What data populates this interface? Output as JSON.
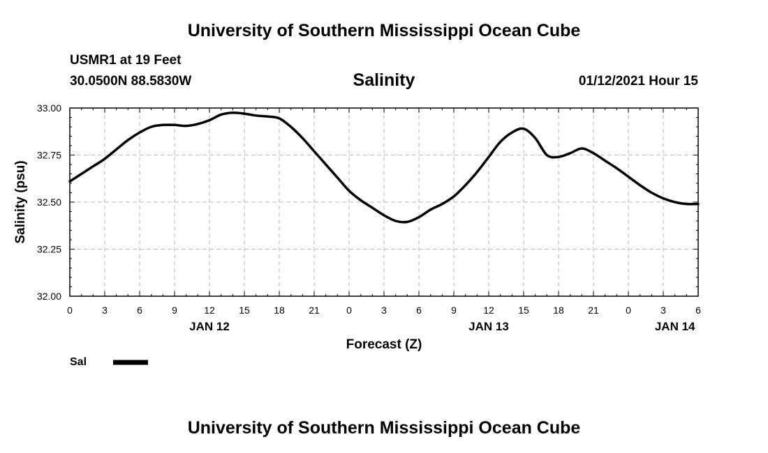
{
  "header": {
    "title": "University of Southern Mississippi Ocean Cube",
    "station": "USMR1 at 19 Feet",
    "coordinates": "30.0500N 88.5830W",
    "datetime": "01/12/2021 Hour 15"
  },
  "footer": {
    "title": "University of Southern Mississippi Ocean Cube"
  },
  "chart_data": {
    "type": "line",
    "title": "Salinity",
    "xlabel": "Forecast (Z)",
    "ylabel": "Salinity (psu)",
    "ylim": [
      32.0,
      33.0
    ],
    "xlim": [
      0,
      54
    ],
    "grid": true,
    "y_ticks": [
      "32.00",
      "32.25",
      "32.50",
      "32.75",
      "33.00"
    ],
    "x_ticks": [
      {
        "hour": 0,
        "label": "0"
      },
      {
        "hour": 3,
        "label": "3"
      },
      {
        "hour": 6,
        "label": "6"
      },
      {
        "hour": 9,
        "label": "9"
      },
      {
        "hour": 12,
        "label": "12"
      },
      {
        "hour": 15,
        "label": "15"
      },
      {
        "hour": 18,
        "label": "18"
      },
      {
        "hour": 21,
        "label": "21"
      },
      {
        "hour": 24,
        "label": "0"
      },
      {
        "hour": 27,
        "label": "3"
      },
      {
        "hour": 30,
        "label": "6"
      },
      {
        "hour": 33,
        "label": "9"
      },
      {
        "hour": 36,
        "label": "12"
      },
      {
        "hour": 39,
        "label": "15"
      },
      {
        "hour": 42,
        "label": "18"
      },
      {
        "hour": 45,
        "label": "21"
      },
      {
        "hour": 48,
        "label": "0"
      },
      {
        "hour": 51,
        "label": "3"
      },
      {
        "hour": 54,
        "label": "6"
      }
    ],
    "date_labels": [
      {
        "hour": 12,
        "label": "JAN 12"
      },
      {
        "hour": 36,
        "label": "JAN 13"
      },
      {
        "hour": 52,
        "label": "JAN 14"
      }
    ],
    "legend": [
      {
        "name": "Sal",
        "color": "#000000"
      }
    ],
    "legend_position": "bottom-left",
    "series": [
      {
        "name": "Sal",
        "color": "#000000",
        "x": [
          0,
          1,
          2,
          3,
          4,
          5,
          6,
          7,
          8,
          9,
          10,
          11,
          12,
          13,
          14,
          15,
          16,
          17,
          18,
          19,
          20,
          21,
          22,
          23,
          24,
          25,
          26,
          27,
          28,
          29,
          30,
          31,
          32,
          33,
          34,
          35,
          36,
          37,
          38,
          39,
          40,
          41,
          42,
          43,
          44,
          45,
          46,
          47,
          48,
          49,
          50,
          51,
          52,
          53,
          54
        ],
        "values": [
          32.61,
          32.65,
          32.69,
          32.73,
          32.78,
          32.83,
          32.87,
          32.9,
          32.91,
          32.91,
          32.905,
          32.915,
          32.935,
          32.965,
          32.975,
          32.97,
          32.96,
          32.955,
          32.945,
          32.9,
          32.84,
          32.77,
          32.7,
          32.63,
          32.56,
          32.51,
          32.47,
          32.43,
          32.4,
          32.395,
          32.42,
          32.46,
          32.49,
          32.53,
          32.59,
          32.66,
          32.74,
          32.82,
          32.87,
          32.89,
          32.84,
          32.75,
          32.74,
          32.76,
          32.785,
          32.76,
          32.72,
          32.68,
          32.635,
          32.59,
          32.55,
          32.52,
          32.5,
          32.49,
          32.49
        ]
      }
    ]
  }
}
